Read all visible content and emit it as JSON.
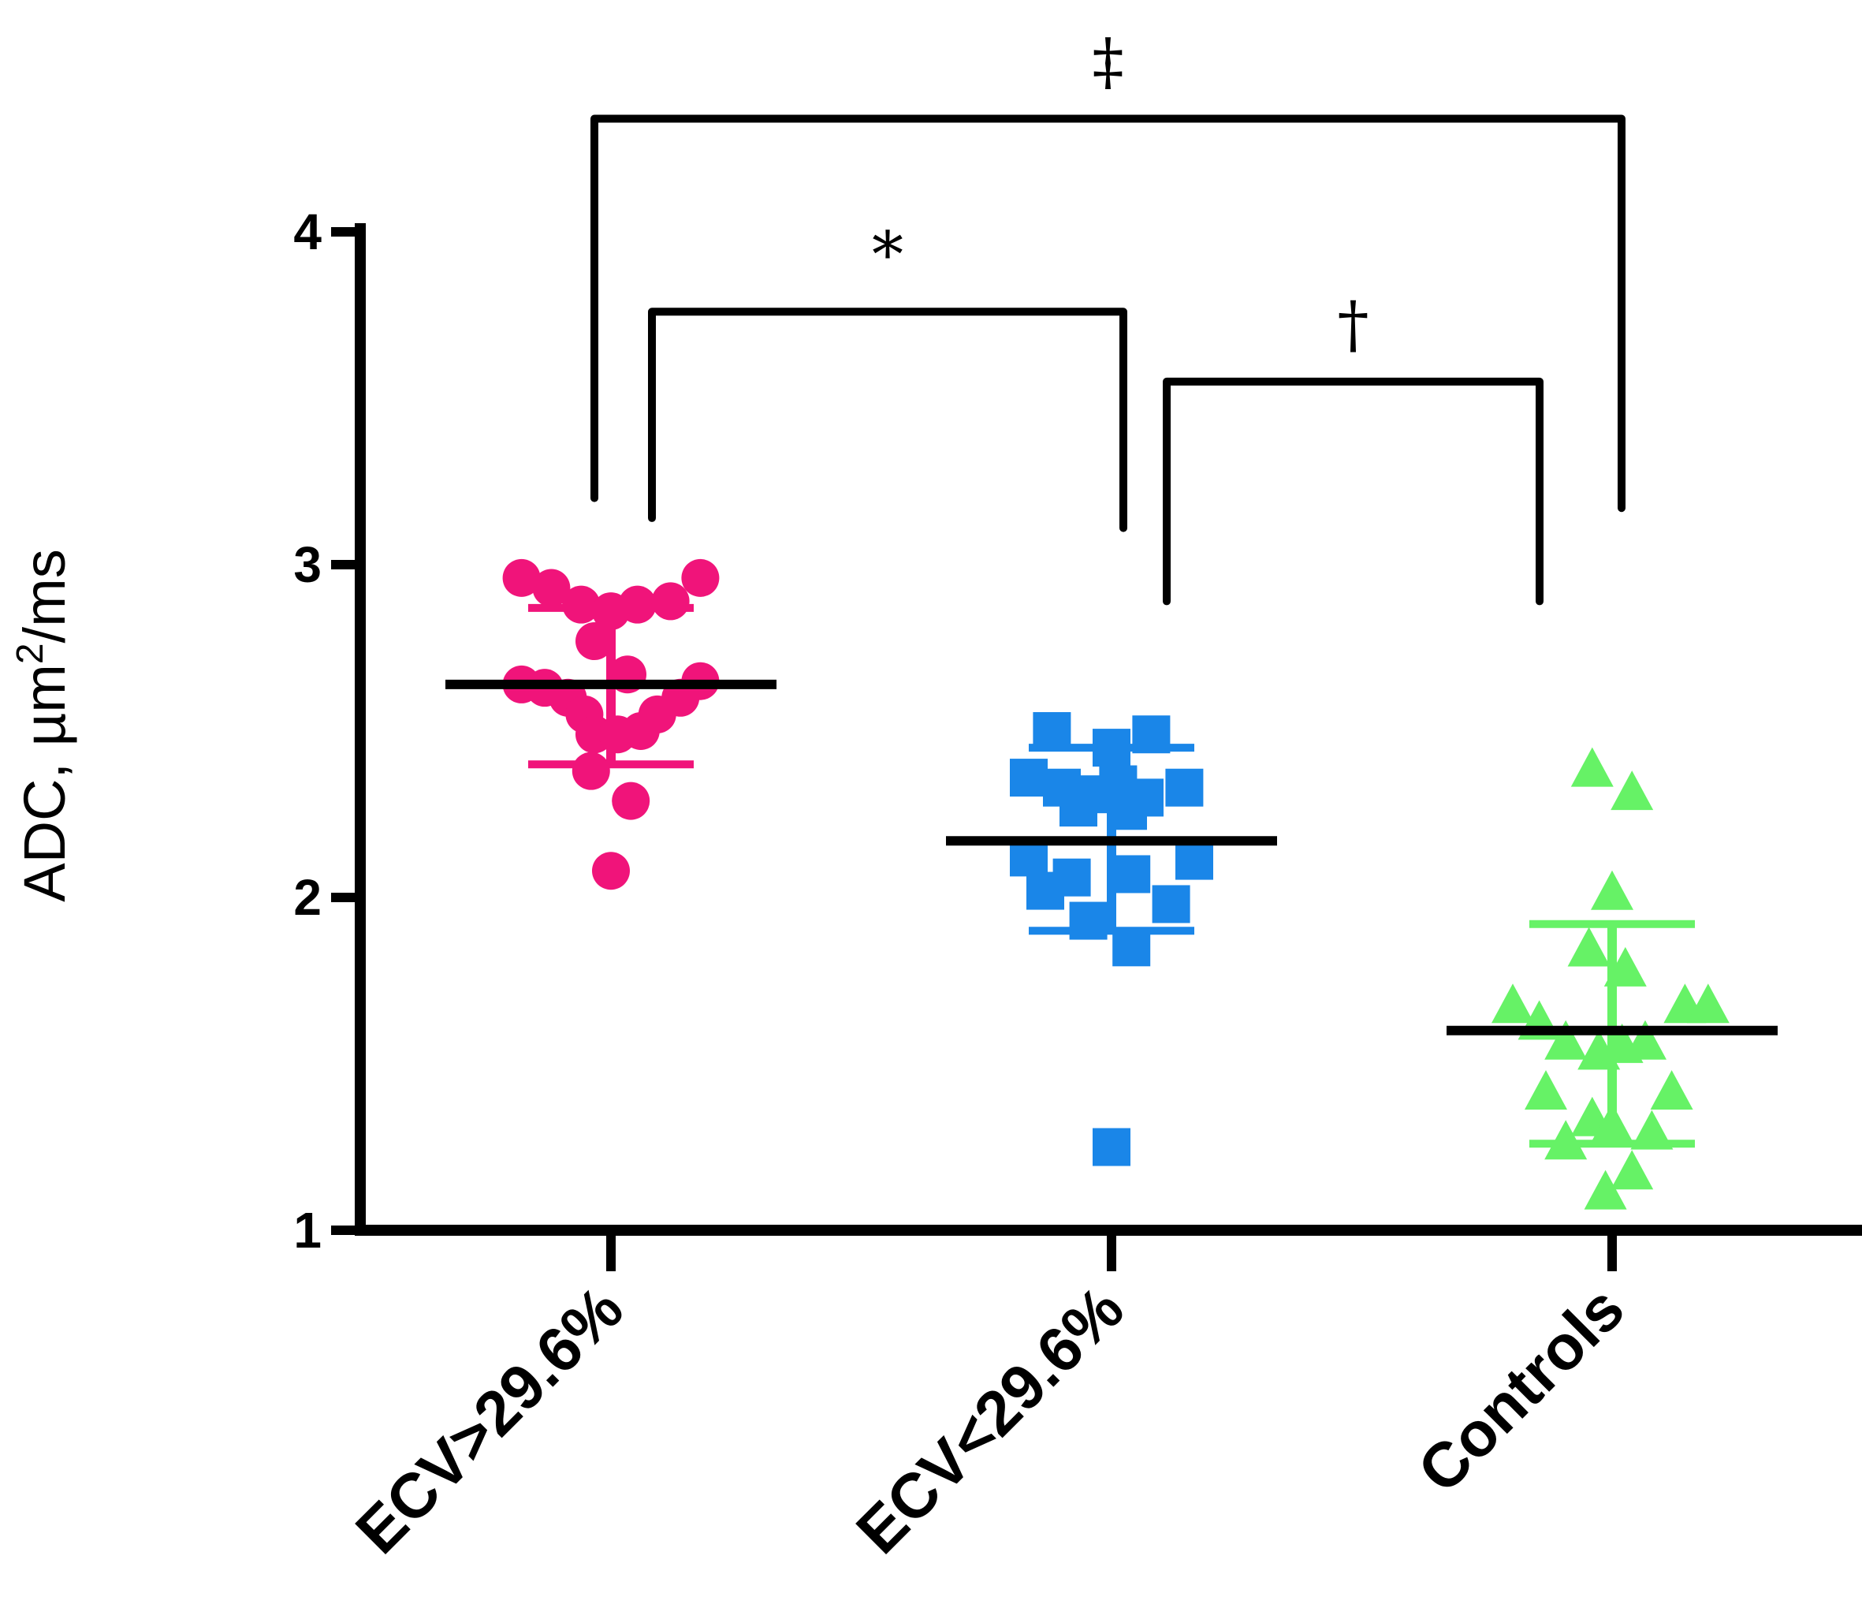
{
  "chart_data": {
    "type": "scatter",
    "title": "",
    "ylabel": "ADC, µm",
    "ylabel_sup": "2",
    "ylabel_unit_suffix": "/ms",
    "ylim": [
      1,
      4
    ],
    "yticks": [
      "1",
      "2",
      "3",
      "4"
    ],
    "grid": false,
    "categories": [
      "ECV>29.6%",
      "ECV<29.6%",
      "Controls"
    ],
    "series": [
      {
        "category": "ECV>29.6%",
        "color": "#f0147a",
        "marker": "circle",
        "mean": 2.64,
        "sd_upper": 2.87,
        "sd_lower": 2.4,
        "points": [
          {
            "dx": -0.27,
            "y": 2.96
          },
          {
            "dx": -0.18,
            "y": 2.93
          },
          {
            "dx": -0.09,
            "y": 2.88
          },
          {
            "dx": 0.0,
            "y": 2.86
          },
          {
            "dx": 0.08,
            "y": 2.88
          },
          {
            "dx": 0.18,
            "y": 2.89
          },
          {
            "dx": 0.27,
            "y": 2.96
          },
          {
            "dx": -0.05,
            "y": 2.77
          },
          {
            "dx": 0.05,
            "y": 2.67
          },
          {
            "dx": -0.27,
            "y": 2.64
          },
          {
            "dx": -0.2,
            "y": 2.63
          },
          {
            "dx": -0.13,
            "y": 2.6
          },
          {
            "dx": -0.08,
            "y": 2.55
          },
          {
            "dx": -0.05,
            "y": 2.49
          },
          {
            "dx": 0.02,
            "y": 2.49
          },
          {
            "dx": 0.09,
            "y": 2.5
          },
          {
            "dx": 0.14,
            "y": 2.55
          },
          {
            "dx": 0.21,
            "y": 2.6
          },
          {
            "dx": 0.27,
            "y": 2.65
          },
          {
            "dx": -0.06,
            "y": 2.38
          },
          {
            "dx": 0.06,
            "y": 2.29
          },
          {
            "dx": 0.0,
            "y": 2.08
          }
        ]
      },
      {
        "category": "ECV<29.6%",
        "color": "#1a86e8",
        "marker": "square",
        "mean": 2.17,
        "sd_upper": 2.45,
        "sd_lower": 1.9,
        "points": [
          {
            "dx": -0.18,
            "y": 2.5
          },
          {
            "dx": 0.0,
            "y": 2.45
          },
          {
            "dx": 0.12,
            "y": 2.49
          },
          {
            "dx": -0.25,
            "y": 2.36
          },
          {
            "dx": -0.15,
            "y": 2.33
          },
          {
            "dx": -0.05,
            "y": 2.31
          },
          {
            "dx": 0.02,
            "y": 2.34
          },
          {
            "dx": 0.1,
            "y": 2.3
          },
          {
            "dx": 0.22,
            "y": 2.33
          },
          {
            "dx": -0.1,
            "y": 2.27
          },
          {
            "dx": 0.05,
            "y": 2.26
          },
          {
            "dx": -0.25,
            "y": 2.12
          },
          {
            "dx": 0.25,
            "y": 2.11
          },
          {
            "dx": -0.12,
            "y": 2.06
          },
          {
            "dx": 0.06,
            "y": 2.07
          },
          {
            "dx": -0.2,
            "y": 2.02
          },
          {
            "dx": 0.18,
            "y": 1.98
          },
          {
            "dx": -0.07,
            "y": 1.93
          },
          {
            "dx": 0.06,
            "y": 1.85
          },
          {
            "dx": 0.0,
            "y": 1.25
          }
        ]
      },
      {
        "category": "Controls",
        "color": "#66f266",
        "marker": "triangle",
        "mean": 1.6,
        "sd_upper": 1.92,
        "sd_lower": 1.26,
        "points": [
          {
            "dx": -0.06,
            "y": 2.38
          },
          {
            "dx": 0.06,
            "y": 2.31
          },
          {
            "dx": 0.0,
            "y": 2.01
          },
          {
            "dx": -0.07,
            "y": 1.84
          },
          {
            "dx": 0.04,
            "y": 1.78
          },
          {
            "dx": -0.3,
            "y": 1.67
          },
          {
            "dx": -0.22,
            "y": 1.62
          },
          {
            "dx": 0.22,
            "y": 1.67
          },
          {
            "dx": 0.29,
            "y": 1.67
          },
          {
            "dx": -0.14,
            "y": 1.56
          },
          {
            "dx": -0.04,
            "y": 1.53
          },
          {
            "dx": 0.03,
            "y": 1.55
          },
          {
            "dx": 0.1,
            "y": 1.56
          },
          {
            "dx": -0.2,
            "y": 1.41
          },
          {
            "dx": 0.18,
            "y": 1.41
          },
          {
            "dx": -0.06,
            "y": 1.33
          },
          {
            "dx": 0.0,
            "y": 1.31
          },
          {
            "dx": -0.14,
            "y": 1.26
          },
          {
            "dx": 0.12,
            "y": 1.29
          },
          {
            "dx": 0.06,
            "y": 1.17
          },
          {
            "dx": -0.02,
            "y": 1.11
          }
        ]
      }
    ],
    "significance": [
      {
        "label": "*",
        "from": "ECV>29.6%",
        "to": "ECV<29.6%",
        "y_bar": 3.76,
        "y_left": 3.14,
        "y_right": 3.11
      },
      {
        "label": "†",
        "from": "ECV<29.6%",
        "to": "Controls",
        "y_bar": 3.55,
        "y_left": 2.89,
        "y_right": 2.89
      },
      {
        "label": "‡",
        "from": "ECV>29.6%",
        "to": "Controls",
        "y_bar": 4.34,
        "y_left": 3.2,
        "y_right": 3.17
      }
    ]
  }
}
